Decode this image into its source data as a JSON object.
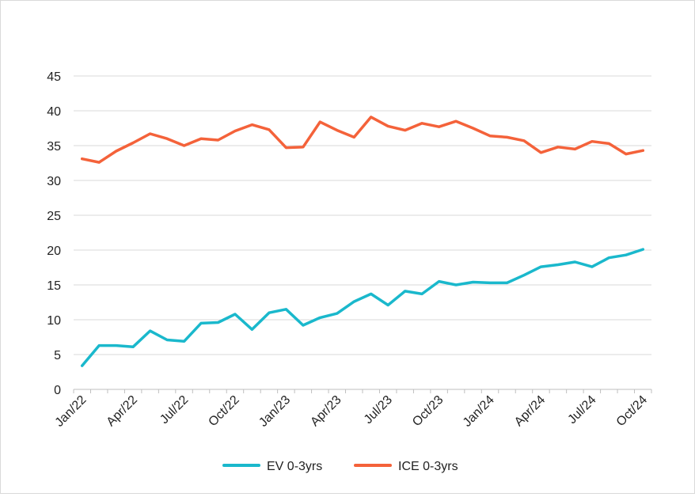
{
  "chart_data": {
    "type": "line",
    "title": "",
    "xlabel": "",
    "ylabel": "",
    "ylim": [
      0,
      45
    ],
    "yticks": [
      0,
      5,
      10,
      15,
      20,
      25,
      30,
      35,
      40,
      45
    ],
    "grid": true,
    "legend_position": "bottom",
    "categories": [
      "Jan/22",
      "Feb/22",
      "Mar/22",
      "Apr/22",
      "May/22",
      "Jun/22",
      "Jul/22",
      "Aug/22",
      "Sep/22",
      "Oct/22",
      "Nov/22",
      "Dec/22",
      "Jan/23",
      "Feb/23",
      "Mar/23",
      "Apr/23",
      "May/23",
      "Jun/23",
      "Jul/23",
      "Aug/23",
      "Sep/23",
      "Oct/23",
      "Nov/23",
      "Dec/23",
      "Jan/24",
      "Feb/24",
      "Mar/24",
      "Apr/24",
      "May/24",
      "Jun/24",
      "Jul/24",
      "Aug/24",
      "Sep/24",
      "Oct/24"
    ],
    "tick_labels": [
      "Jan/22",
      "Apr/22",
      "Jul/22",
      "Oct/22",
      "Jan/23",
      "Apr/23",
      "Jul/23",
      "Oct/23",
      "Jan/24",
      "Apr/24",
      "Jul/24",
      "Oct/24"
    ],
    "series": [
      {
        "name": "EV 0-3yrs",
        "color": "#1ab8cc",
        "values": [
          3.4,
          6.3,
          6.3,
          6.1,
          8.4,
          7.1,
          6.9,
          9.5,
          9.6,
          10.8,
          8.6,
          11.0,
          11.5,
          9.2,
          10.3,
          10.9,
          12.6,
          13.7,
          12.1,
          14.1,
          13.7,
          15.5,
          15.0,
          15.4,
          15.3,
          15.3,
          16.4,
          17.6,
          17.9,
          18.3,
          17.6,
          18.9,
          19.3,
          20.1
        ]
      },
      {
        "name": "ICE 0-3yrs",
        "color": "#f4623a",
        "values": [
          33.1,
          32.6,
          34.2,
          35.4,
          36.7,
          36.0,
          35.0,
          36.0,
          35.8,
          37.1,
          38.0,
          37.3,
          34.7,
          34.8,
          38.4,
          37.2,
          36.2,
          39.1,
          37.8,
          37.2,
          38.2,
          37.7,
          38.5,
          37.5,
          36.4,
          36.2,
          35.7,
          34.0,
          34.8,
          34.5,
          35.6,
          35.3,
          33.8,
          34.3
        ]
      }
    ]
  }
}
